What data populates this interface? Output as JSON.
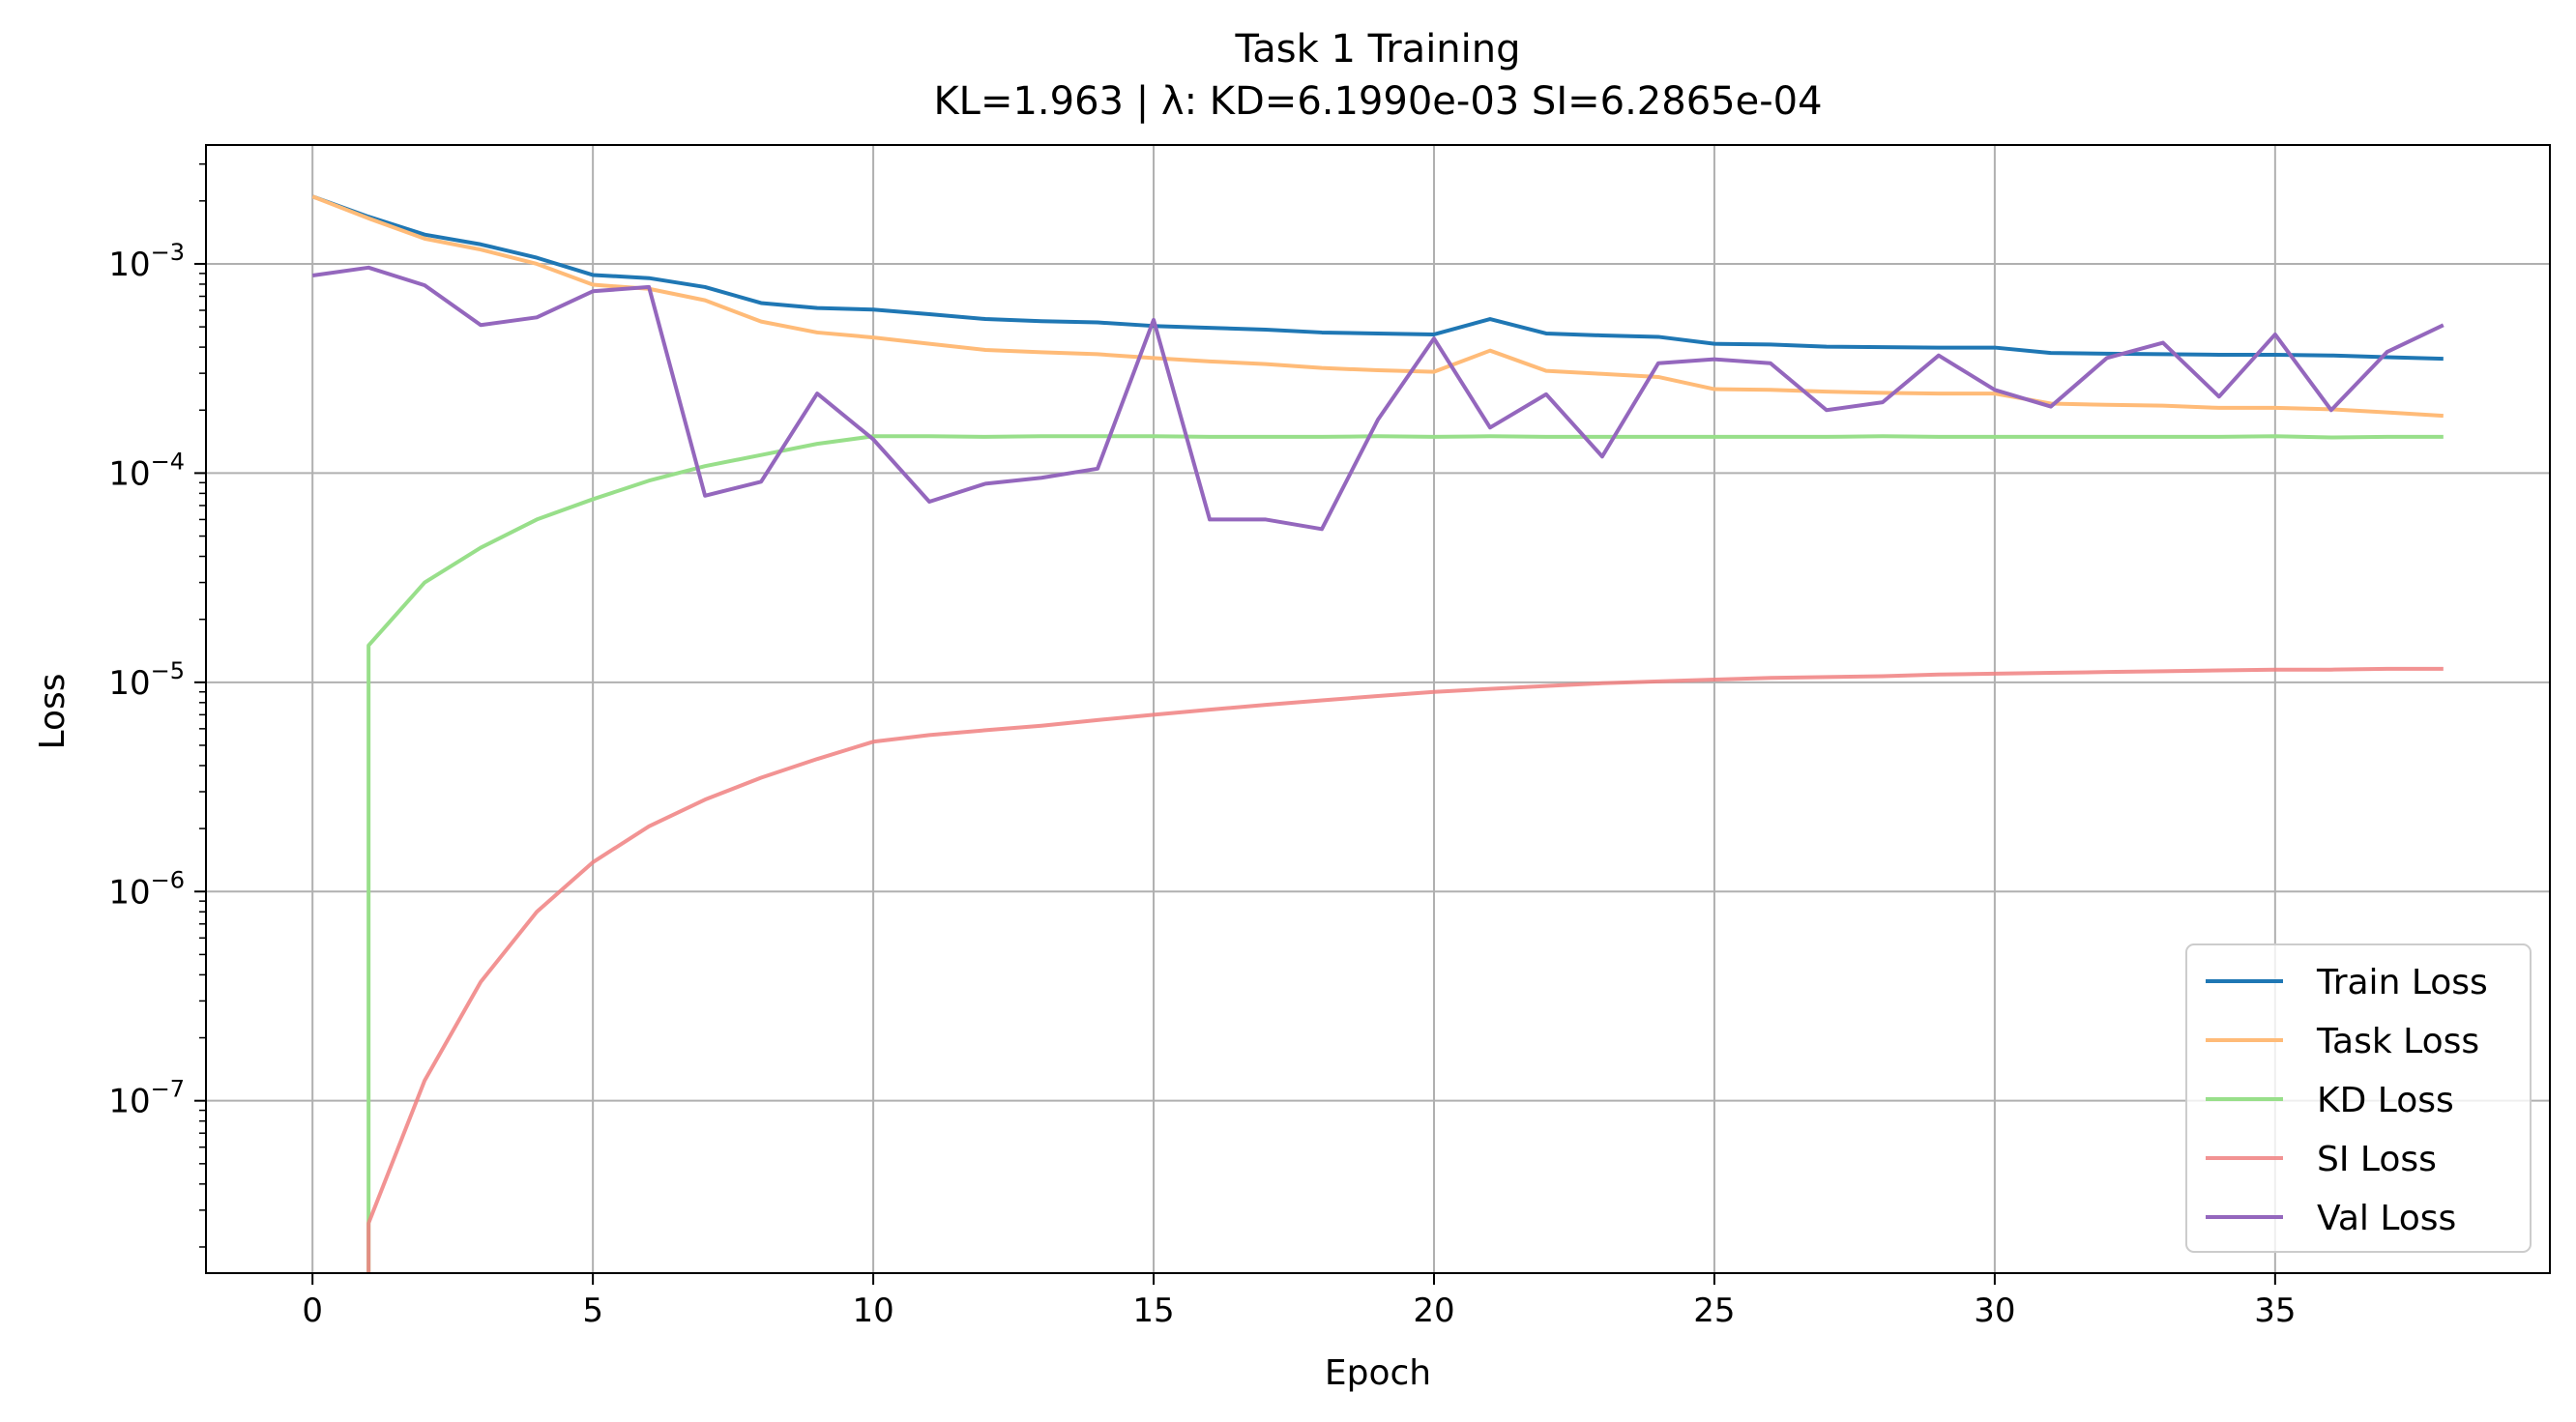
{
  "chart_data": {
    "type": "line",
    "title": "Task 1 Training",
    "subtitle": "KL=1.963 | λ: KD=6.1990e-03 SI=6.2865e-04",
    "xlabel": "Epoch",
    "ylabel": "Loss",
    "yscale": "log",
    "xlim": [
      -1.9,
      39.9
    ],
    "ylim": [
      1.5e-08,
      0.0037
    ],
    "grid": true,
    "legend_position": "lower-right",
    "xticks": [
      0,
      5,
      10,
      15,
      20,
      25,
      30,
      35
    ],
    "xtick_labels": [
      "0",
      "5",
      "10",
      "15",
      "20",
      "25",
      "30",
      "35"
    ],
    "yticks": [
      0.001,
      0.0001,
      1e-05,
      1e-06,
      1e-07
    ],
    "ytick_labels": [
      {
        "base": "10",
        "exp": "−3"
      },
      {
        "base": "10",
        "exp": "−4"
      },
      {
        "base": "10",
        "exp": "−5"
      },
      {
        "base": "10",
        "exp": "−6"
      },
      {
        "base": "10",
        "exp": "−7"
      }
    ],
    "x": [
      0,
      1,
      2,
      3,
      4,
      5,
      6,
      7,
      8,
      9,
      10,
      11,
      12,
      13,
      14,
      15,
      16,
      17,
      18,
      19,
      20,
      21,
      22,
      23,
      24,
      25,
      26,
      27,
      28,
      29,
      30,
      31,
      32,
      33,
      34,
      35,
      36,
      37,
      38
    ],
    "series": [
      {
        "name": "Train Loss",
        "color": "#1f77b4",
        "opacity": 1.0,
        "values": [
          0.0021,
          0.00168,
          0.00138,
          0.00124,
          0.00107,
          0.000885,
          0.000855,
          0.000775,
          0.00065,
          0.000615,
          0.000605,
          0.000575,
          0.000545,
          0.000532,
          0.000525,
          0.000505,
          0.000495,
          0.000485,
          0.00047,
          0.000465,
          0.00046,
          0.000545,
          0.000465,
          0.000455,
          0.000448,
          0.000415,
          0.000412,
          0.000402,
          0.0004,
          0.000398,
          0.000398,
          0.000375,
          0.000372,
          0.00037,
          0.000368,
          0.000368,
          0.000365,
          0.000358,
          0.000352
        ]
      },
      {
        "name": "Task Loss",
        "color": "#ffbb78",
        "opacity": 1.0,
        "values": [
          0.0021,
          0.00165,
          0.00132,
          0.00117,
          0.001,
          0.000795,
          0.00076,
          0.00067,
          0.00053,
          0.00047,
          0.000445,
          0.000415,
          0.000388,
          0.000378,
          0.00037,
          0.000355,
          0.000342,
          0.000332,
          0.000318,
          0.00031,
          0.000305,
          0.000385,
          0.000308,
          0.000298,
          0.000288,
          0.000252,
          0.00025,
          0.000245,
          0.000242,
          0.00024,
          0.00024,
          0.000215,
          0.000212,
          0.00021,
          0.000205,
          0.000205,
          0.000202,
          0.000195,
          0.000188
        ]
      },
      {
        "name": "KD Loss",
        "color": "#98df8a",
        "opacity": 1.0,
        "values": [
          null,
          1.5e-05,
          3e-05,
          4.4e-05,
          6e-05,
          7.5e-05,
          9.2e-05,
          0.000108,
          0.000122,
          0.000138,
          0.00015,
          0.00015,
          0.000149,
          0.00015,
          0.00015,
          0.00015,
          0.000149,
          0.000149,
          0.000149,
          0.00015,
          0.000149,
          0.00015,
          0.000149,
          0.000149,
          0.000149,
          0.000149,
          0.000149,
          0.000149,
          0.00015,
          0.000149,
          0.000149,
          0.000149,
          0.000149,
          0.000149,
          0.000149,
          0.00015,
          0.000148,
          0.000149,
          0.000149
        ]
      },
      {
        "name": "SI Loss",
        "color": "#f08080",
        "opacity": 0.85,
        "values": [
          null,
          2.6e-08,
          1.25e-07,
          3.7e-07,
          8e-07,
          1.38e-06,
          2.05e-06,
          2.75e-06,
          3.5e-06,
          4.3e-06,
          5.2e-06,
          5.6e-06,
          5.9e-06,
          6.2e-06,
          6.6e-06,
          7e-06,
          7.4e-06,
          7.8e-06,
          8.2e-06,
          8.6e-06,
          9e-06,
          9.3e-06,
          9.6e-06,
          9.9e-06,
          1.01e-05,
          1.03e-05,
          1.05e-05,
          1.06e-05,
          1.07e-05,
          1.09e-05,
          1.1e-05,
          1.11e-05,
          1.12e-05,
          1.13e-05,
          1.14e-05,
          1.15e-05,
          1.15e-05,
          1.16e-05,
          1.16e-05
        ]
      },
      {
        "name": "Val Loss",
        "color": "#9467bd",
        "opacity": 1.0,
        "values": [
          0.00088,
          0.00096,
          0.00079,
          0.00051,
          0.000555,
          0.00074,
          0.000775,
          7.8e-05,
          9.1e-05,
          0.00024,
          0.000145,
          7.3e-05,
          8.9e-05,
          9.5e-05,
          0.000105,
          0.00054,
          6e-05,
          6e-05,
          5.4e-05,
          0.00018,
          0.00044,
          0.000165,
          0.000238,
          0.00012,
          0.000335,
          0.00035,
          0.000335,
          0.0002,
          0.000218,
          0.000365,
          0.00025,
          0.000208,
          0.000355,
          0.00042,
          0.000232,
          0.00046,
          0.0002,
          0.00038,
          0.00051
        ]
      }
    ]
  }
}
